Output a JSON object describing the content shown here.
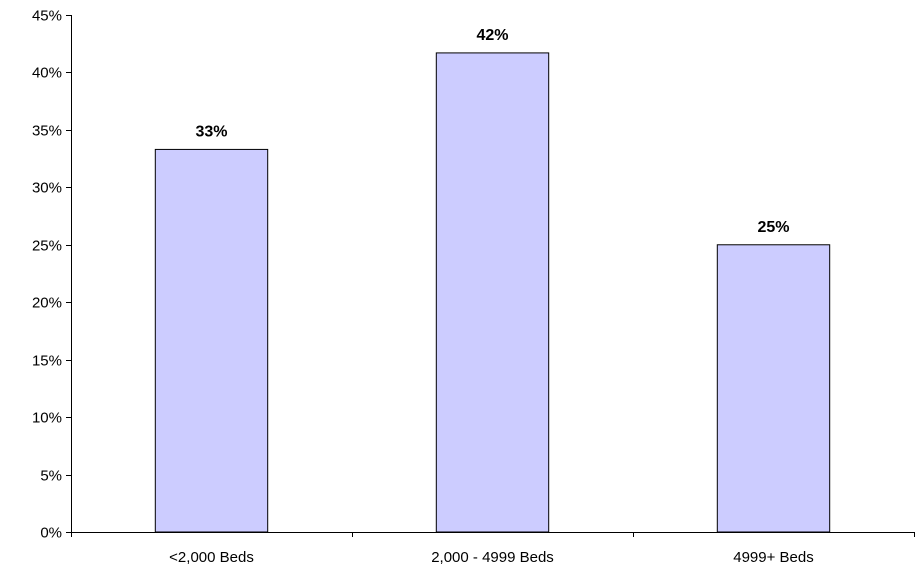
{
  "chart_data": {
    "type": "bar",
    "categories": [
      "<2,000 Beds",
      "2,000 - 4999 Beds",
      "4999+ Beds"
    ],
    "values": [
      33.3,
      41.7,
      25.0
    ],
    "data_labels": [
      "33%",
      "42%",
      "25%"
    ],
    "ylim": [
      0,
      45
    ],
    "yticks": [
      0,
      5,
      10,
      15,
      20,
      25,
      30,
      35,
      40,
      45
    ],
    "ytick_labels": [
      "0%",
      "5%",
      "10%",
      "15%",
      "20%",
      "25%",
      "30%",
      "35%",
      "40%",
      "45%"
    ],
    "grid": false,
    "legend": "none",
    "bar_color": "#ccccff",
    "bar_edge_color": "#000000"
  }
}
